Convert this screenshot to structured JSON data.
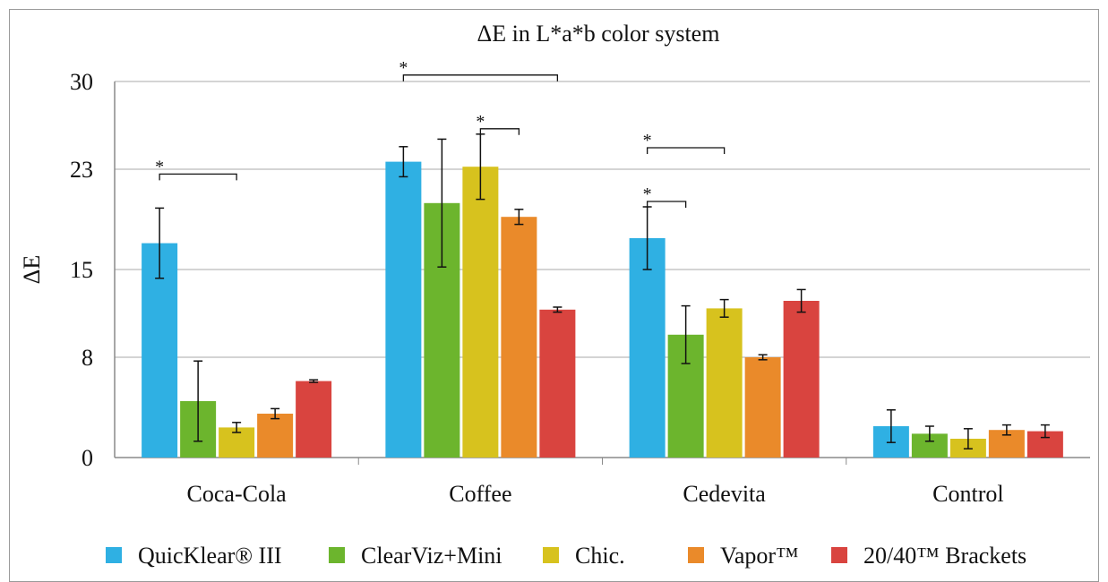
{
  "chart_data": {
    "type": "bar",
    "title": "ΔE in L*a*b color system",
    "xlabel": "",
    "ylabel": "ΔE",
    "ylim": [
      0,
      30
    ],
    "yticks": [
      0,
      8,
      15,
      23,
      30
    ],
    "grid": true,
    "legend_position": "bottom",
    "categories": [
      "Coca-Cola",
      "Coffee",
      "Cedevita",
      "Control"
    ],
    "series": [
      {
        "name": "QuicKlear® III",
        "color": "#2fb0e3",
        "values": [
          17.1,
          23.6,
          17.5,
          2.5
        ],
        "errors": [
          2.8,
          1.2,
          2.5,
          1.3
        ]
      },
      {
        "name": "ClearViz+Mini",
        "color": "#6cb52d",
        "values": [
          4.5,
          20.3,
          9.8,
          1.9
        ],
        "errors": [
          3.2,
          5.1,
          2.3,
          0.6
        ]
      },
      {
        "name": "Chic.",
        "color": "#d7c21e",
        "values": [
          2.4,
          23.2,
          11.9,
          1.5
        ],
        "errors": [
          0.4,
          2.6,
          0.7,
          0.8
        ]
      },
      {
        "name": "Vapor™",
        "color": "#ea8a2a",
        "values": [
          3.5,
          19.2,
          8.0,
          2.2
        ],
        "errors": [
          0.4,
          0.6,
          0.2,
          0.4
        ]
      },
      {
        "name": "20/40™ Brackets",
        "color": "#d9443f",
        "values": [
          6.1,
          11.8,
          12.5,
          2.1
        ],
        "errors": [
          0.1,
          0.2,
          0.9,
          0.5
        ]
      }
    ],
    "significance": [
      {
        "category": "Coca-Cola",
        "from_series": 0,
        "to_series": 2,
        "level": 2,
        "label": "*"
      },
      {
        "category": "Coffee",
        "from_series": 0,
        "to_series": 4,
        "level": 3,
        "label": "*"
      },
      {
        "category": "Coffee",
        "from_series": 2,
        "to_series": 3,
        "level": 1,
        "label": "*"
      },
      {
        "category": "Cedevita",
        "from_series": 0,
        "to_series": 2,
        "level": 3,
        "label": "*"
      },
      {
        "category": "Cedevita",
        "from_series": 0,
        "to_series": 1,
        "level": 1,
        "label": "*"
      }
    ]
  }
}
